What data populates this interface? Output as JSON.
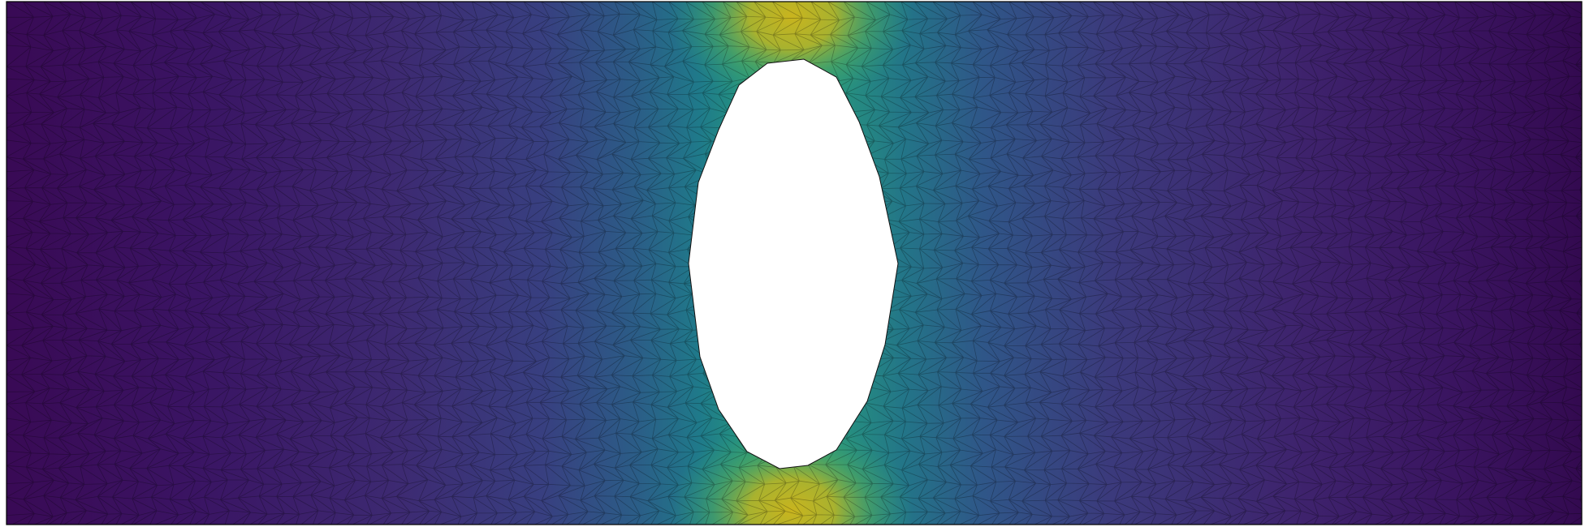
{
  "figure": {
    "description_type": "finite-element-mesh-field-plot",
    "colormap": "viridis",
    "colormap_stops": [
      "#440154",
      "#3b528b",
      "#21918c",
      "#5ec962",
      "#fde725"
    ],
    "background_color": "#ffffff",
    "mesh_edge_color": "#000000",
    "boundary_color": "#000000",
    "hole_shape": "ellipse",
    "field_peak_location": "hole-top-and-bottom",
    "field_low_location": "left-and-right-ends",
    "labels_shown": false
  }
}
